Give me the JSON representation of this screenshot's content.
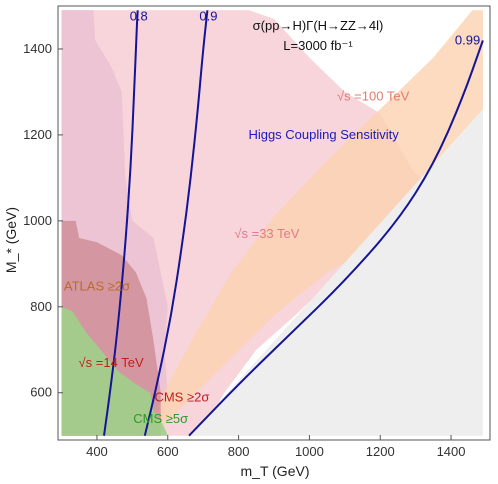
{
  "chart_data": {
    "type": "area",
    "title_line1": "σ(pp→H)Γ(H→ZZ→4l)",
    "title_line2": "L=3000 fb⁻¹",
    "xlabel": "m_T (GeV)",
    "ylabel": "M_* (GeV)",
    "xlim": [
      290,
      1510
    ],
    "ylim": [
      490,
      1500
    ],
    "xticks": [
      400,
      600,
      800,
      1000,
      1200,
      1400
    ],
    "xtick_labels": [
      "400",
      "600",
      "800",
      "1000",
      "1200",
      "1400"
    ],
    "yticks": [
      600,
      800,
      1000,
      1200,
      1400
    ],
    "ytick_labels": [
      "600",
      "800",
      "1000",
      "1200",
      "1400"
    ],
    "grid": false,
    "colors": {
      "purple": "#c9b3d8",
      "pink_region": "#f5c6cf",
      "light_pink": "#fde3e6",
      "orange_band": "#fbd2b0",
      "orange_light": "#fde6cc",
      "dark_red_region": "#c9848d",
      "green_region": "#9fd08a",
      "gray_excluded": "#eeeeee",
      "curve": "#141496",
      "atlas_text": "#b86b2a",
      "cms2_text": "#c0201b",
      "cms5_text": "#2e9a25",
      "s14_text": "#c0201b",
      "s33_text": "#e07b8c",
      "s100_text": "#e8786e",
      "higgs_text": "#1b1bb5"
    },
    "regions": [
      {
        "name": "purple-region",
        "points": [
          [
            300,
            1490
          ],
          [
            390,
            1490
          ],
          [
            395,
            1420
          ],
          [
            440,
            1360
          ],
          [
            470,
            1300
          ],
          [
            480,
            1100
          ],
          [
            500,
            1000
          ],
          [
            560,
            960
          ],
          [
            600,
            800
          ],
          [
            590,
            700
          ],
          [
            600,
            600
          ],
          [
            580,
            500
          ],
          [
            300,
            500
          ]
        ]
      },
      {
        "name": "pink-region",
        "points": [
          [
            300,
            1490
          ],
          [
            830,
            1490
          ],
          [
            900,
            1470
          ],
          [
            1000,
            1380
          ],
          [
            1100,
            1300
          ],
          [
            1200,
            1250
          ],
          [
            1290,
            1120
          ],
          [
            1340,
            1080
          ],
          [
            1240,
            980
          ],
          [
            1100,
            890
          ],
          [
            960,
            780
          ],
          [
            850,
            700
          ],
          [
            760,
            600
          ],
          [
            690,
            500
          ],
          [
            300,
            500
          ]
        ]
      },
      {
        "name": "orange-band",
        "points": [
          [
            560,
            500
          ],
          [
            740,
            650
          ],
          [
            900,
            780
          ],
          [
            1050,
            880
          ],
          [
            1200,
            950
          ],
          [
            1350,
            1050
          ],
          [
            1490,
            1180
          ],
          [
            1490,
            1490
          ],
          [
            1460,
            1490
          ],
          [
            1350,
            1380
          ],
          [
            1200,
            1260
          ],
          [
            1050,
            1140
          ],
          [
            900,
            1010
          ],
          [
            780,
            880
          ],
          [
            680,
            740
          ],
          [
            600,
            620
          ],
          [
            540,
            500
          ]
        ]
      },
      {
        "name": "dark-red-region",
        "points": [
          [
            300,
            1000
          ],
          [
            340,
            1000
          ],
          [
            350,
            960
          ],
          [
            400,
            950
          ],
          [
            470,
            920
          ],
          [
            510,
            880
          ],
          [
            540,
            820
          ],
          [
            560,
            720
          ],
          [
            580,
            600
          ],
          [
            580,
            500
          ],
          [
            300,
            500
          ]
        ]
      },
      {
        "name": "green-region",
        "points": [
          [
            300,
            800
          ],
          [
            330,
            790
          ],
          [
            370,
            740
          ],
          [
            410,
            700
          ],
          [
            460,
            650
          ],
          [
            510,
            620
          ],
          [
            550,
            600
          ],
          [
            560,
            560
          ],
          [
            590,
            520
          ],
          [
            600,
            500
          ],
          [
            300,
            500
          ]
        ]
      },
      {
        "name": "gray-excluded-region",
        "points": [
          [
            660,
            500
          ],
          [
            1490,
            1260
          ],
          [
            1490,
            500
          ]
        ]
      }
    ],
    "series": [
      {
        "name": "0.8",
        "x": [
          420,
          440,
          460,
          480,
          495,
          505,
          512,
          515
        ],
        "y": [
          500,
          620,
          760,
          940,
          1120,
          1300,
          1440,
          1490
        ]
      },
      {
        "name": "0.9",
        "x": [
          535,
          570,
          610,
          640,
          665,
          685,
          700,
          712
        ],
        "y": [
          500,
          620,
          780,
          940,
          1100,
          1260,
          1400,
          1490
        ]
      },
      {
        "name": "0.99",
        "x": [
          660,
          800,
          950,
          1100,
          1250,
          1350,
          1430,
          1490
        ],
        "y": [
          500,
          620,
          740,
          860,
          1000,
          1130,
          1280,
          1420
        ]
      }
    ],
    "annotations": [
      {
        "text": "√s =100 TeV",
        "x": 1180,
        "y": 1280,
        "color_key": "s100_text"
      },
      {
        "text": "Higgs Coupling Sensitivity",
        "x": 1040,
        "y": 1190,
        "color_key": "higgs_text"
      },
      {
        "text": "√s =33 TeV",
        "x": 880,
        "y": 960,
        "color_key": "s33_text"
      },
      {
        "text": "ATLAS ≥2σ",
        "x": 400,
        "y": 838,
        "color_key": "atlas_text"
      },
      {
        "text": "√s =14 TeV",
        "x": 440,
        "y": 660,
        "color_key": "s14_text"
      },
      {
        "text": "CMS ≥2σ",
        "x": 640,
        "y": 580,
        "color_key": "cms2_text"
      },
      {
        "text": "CMS ≥5σ",
        "x": 580,
        "y": 530,
        "color_key": "cms5_text"
      }
    ]
  }
}
